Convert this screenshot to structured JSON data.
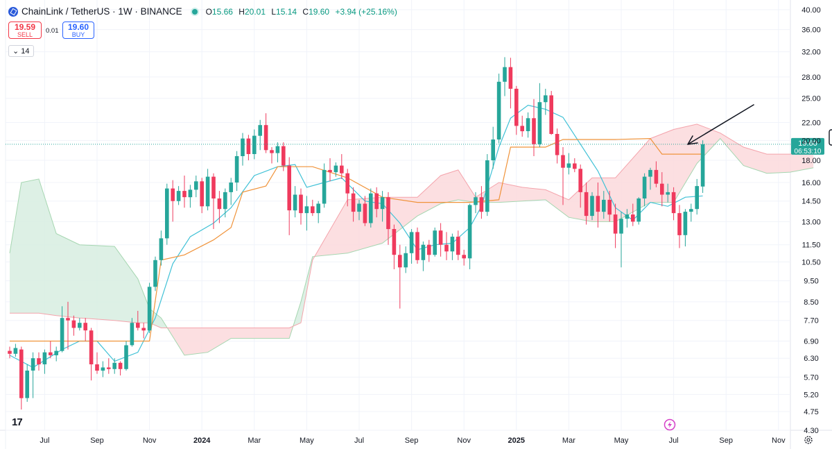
{
  "header": {
    "symbol": "ChainLink / TetherUS · 1W · BINANCE",
    "o_label": "O",
    "o": "15.66",
    "h_label": "H",
    "h": "20.01",
    "l_label": "L",
    "l": "15.14",
    "c_label": "C",
    "c": "19.60",
    "change": "+3.94 (+25.16%)"
  },
  "trade": {
    "sell_price": "19.59",
    "sell_label": "SELL",
    "spread": "0.01",
    "buy_price": "19.60",
    "buy_label": "BUY"
  },
  "indicator": {
    "label": "14",
    "icon": "chevron-down-icon"
  },
  "price_badge": {
    "price": "19.60",
    "countdown": "06:53:10"
  },
  "colors": {
    "up": "#26a69a",
    "down": "#ef3a5d",
    "tenkan": "#3fc1d6",
    "kijun": "#f0933a",
    "cloud_bull": "#d7ede0",
    "cloud_bear": "#fbd9dc"
  },
  "chart_data": {
    "type": "candlestick",
    "title": "ChainLink / TetherUS · 1W · BINANCE",
    "yscale": "log",
    "ylim": [
      4.3,
      40.0
    ],
    "y_ticks": [
      "40.00",
      "36.00",
      "32.00",
      "28.00",
      "25.00",
      "22.00",
      "20.00",
      "18.00",
      "16.00",
      "14.50",
      "13.00",
      "11.50",
      "10.50",
      "9.50",
      "8.50",
      "7.70",
      "6.90",
      "6.30",
      "5.70",
      "5.20",
      "4.75",
      "4.30"
    ],
    "x_ticks": [
      {
        "label": "Jul",
        "idx": 6,
        "bold": false
      },
      {
        "label": "Sep",
        "idx": 15,
        "bold": false
      },
      {
        "label": "Nov",
        "idx": 24,
        "bold": false
      },
      {
        "label": "2024",
        "idx": 33,
        "bold": true
      },
      {
        "label": "Mar",
        "idx": 42,
        "bold": false
      },
      {
        "label": "May",
        "idx": 51,
        "bold": false
      },
      {
        "label": "Jul",
        "idx": 60,
        "bold": false
      },
      {
        "label": "Sep",
        "idx": 69,
        "bold": false
      },
      {
        "label": "Nov",
        "idx": 78,
        "bold": false
      },
      {
        "label": "2025",
        "idx": 87,
        "bold": true
      },
      {
        "label": "Mar",
        "idx": 96,
        "bold": false
      },
      {
        "label": "May",
        "idx": 105,
        "bold": false
      },
      {
        "label": "Jul",
        "idx": 114,
        "bold": false
      },
      {
        "label": "Sep",
        "idx": 123,
        "bold": false
      },
      {
        "label": "Nov",
        "idx": 132,
        "bold": false
      }
    ],
    "candles": [
      [
        6.55,
        6.7,
        6.3,
        6.45
      ],
      [
        6.45,
        6.8,
        6.35,
        6.65
      ],
      [
        6.6,
        6.7,
        4.8,
        5.1
      ],
      [
        5.1,
        6.1,
        5.0,
        5.9
      ],
      [
        5.9,
        6.5,
        5.1,
        6.3
      ],
      [
        6.3,
        6.5,
        5.9,
        6.1
      ],
      [
        6.1,
        6.6,
        5.8,
        6.5
      ],
      [
        6.5,
        6.9,
        6.3,
        6.4
      ],
      [
        6.4,
        6.7,
        6.2,
        6.55
      ],
      [
        6.55,
        8.3,
        6.5,
        7.8
      ],
      [
        7.8,
        8.5,
        6.6,
        7.7
      ],
      [
        7.7,
        7.9,
        7.1,
        7.4
      ],
      [
        7.4,
        7.8,
        7.3,
        7.6
      ],
      [
        7.6,
        7.8,
        6.9,
        7.3
      ],
      [
        7.3,
        7.4,
        5.6,
        6.1
      ],
      [
        6.1,
        6.5,
        5.8,
        5.9
      ],
      [
        5.9,
        6.2,
        5.7,
        6.0
      ],
      [
        6.0,
        6.3,
        5.8,
        5.95
      ],
      [
        5.95,
        6.3,
        5.8,
        6.15
      ],
      [
        6.15,
        6.2,
        5.75,
        5.95
      ],
      [
        5.95,
        6.9,
        5.9,
        6.75
      ],
      [
        6.75,
        7.8,
        6.7,
        7.6
      ],
      [
        7.6,
        8.1,
        7.3,
        7.4
      ],
      [
        7.4,
        7.6,
        7.0,
        7.3
      ],
      [
        7.3,
        9.4,
        7.2,
        9.2
      ],
      [
        9.2,
        10.8,
        9.0,
        10.6
      ],
      [
        10.6,
        12.4,
        10.3,
        11.9
      ],
      [
        11.9,
        15.9,
        11.5,
        15.5
      ],
      [
        15.5,
        16.2,
        13.0,
        14.5
      ],
      [
        14.5,
        15.7,
        14.2,
        15.3
      ],
      [
        15.3,
        16.6,
        14.0,
        14.8
      ],
      [
        14.8,
        15.8,
        14.0,
        15.4
      ],
      [
        15.4,
        16.6,
        14.8,
        16.1
      ],
      [
        16.1,
        16.4,
        13.6,
        14.1
      ],
      [
        14.1,
        17.2,
        13.8,
        16.5
      ],
      [
        16.5,
        16.8,
        12.5,
        14.7
      ],
      [
        14.7,
        15.3,
        12.9,
        13.9
      ],
      [
        13.9,
        15.5,
        13.3,
        15.2
      ],
      [
        15.2,
        16.4,
        14.2,
        16.0
      ],
      [
        16.0,
        18.9,
        15.3,
        18.4
      ],
      [
        18.4,
        20.8,
        17.5,
        20.2
      ],
      [
        20.2,
        20.6,
        18.0,
        18.6
      ],
      [
        18.6,
        21.2,
        18.1,
        20.5
      ],
      [
        20.5,
        22.3,
        19.0,
        21.7
      ],
      [
        21.7,
        23.1,
        18.7,
        19.0
      ],
      [
        19.0,
        19.3,
        17.7,
        18.7
      ],
      [
        18.7,
        19.8,
        17.8,
        19.4
      ],
      [
        19.4,
        19.8,
        17.0,
        17.5
      ],
      [
        17.5,
        18.3,
        12.1,
        13.8
      ],
      [
        13.8,
        15.7,
        13.3,
        15.0
      ],
      [
        15.0,
        15.5,
        12.8,
        13.6
      ],
      [
        13.6,
        14.9,
        12.4,
        14.1
      ],
      [
        14.1,
        14.6,
        13.4,
        13.6
      ],
      [
        13.6,
        14.5,
        12.9,
        14.3
      ],
      [
        14.3,
        17.7,
        14.0,
        17.1
      ],
      [
        17.1,
        18.2,
        16.1,
        16.9
      ],
      [
        16.9,
        17.8,
        16.5,
        17.5
      ],
      [
        17.5,
        18.6,
        16.3,
        16.8
      ],
      [
        16.8,
        17.2,
        14.1,
        15.1
      ],
      [
        15.1,
        15.6,
        13.0,
        13.7
      ],
      [
        13.7,
        14.6,
        13.1,
        14.3
      ],
      [
        14.3,
        14.9,
        12.7,
        12.9
      ],
      [
        12.9,
        15.5,
        12.6,
        15.1
      ],
      [
        15.1,
        15.6,
        13.3,
        13.9
      ],
      [
        13.9,
        15.3,
        13.0,
        14.8
      ],
      [
        14.8,
        15.2,
        11.5,
        12.5
      ],
      [
        12.5,
        12.8,
        10.1,
        10.9
      ],
      [
        10.9,
        11.5,
        8.2,
        10.2
      ],
      [
        10.2,
        11.4,
        9.9,
        11.0
      ],
      [
        11.0,
        12.5,
        10.4,
        12.3
      ],
      [
        12.3,
        12.6,
        10.4,
        10.6
      ],
      [
        10.6,
        11.7,
        10.0,
        11.5
      ],
      [
        11.5,
        11.8,
        10.5,
        10.9
      ],
      [
        10.9,
        12.6,
        10.8,
        12.4
      ],
      [
        12.4,
        12.9,
        10.8,
        11.5
      ],
      [
        11.5,
        12.3,
        10.6,
        11.1
      ],
      [
        11.1,
        12.2,
        10.6,
        12.0
      ],
      [
        12.0,
        12.4,
        10.6,
        10.9
      ],
      [
        10.9,
        11.2,
        10.3,
        10.7
      ],
      [
        10.7,
        14.3,
        10.1,
        14.2
      ],
      [
        14.2,
        15.2,
        13.6,
        14.8
      ],
      [
        14.8,
        15.7,
        13.2,
        13.7
      ],
      [
        13.7,
        18.6,
        13.4,
        18.0
      ],
      [
        18.0,
        21.5,
        17.2,
        20.1
      ],
      [
        20.1,
        28.5,
        19.7,
        27.3
      ],
      [
        27.3,
        31.1,
        25.3,
        29.5
      ],
      [
        29.5,
        31.0,
        23.7,
        26.3
      ],
      [
        26.3,
        26.7,
        20.6,
        21.6
      ],
      [
        21.6,
        22.8,
        20.4,
        21.0
      ],
      [
        21.0,
        23.2,
        20.3,
        22.5
      ],
      [
        22.5,
        24.9,
        18.4,
        19.6
      ],
      [
        19.6,
        27.1,
        19.3,
        24.5
      ],
      [
        24.5,
        26.3,
        22.9,
        25.4
      ],
      [
        25.4,
        26.0,
        20.6,
        20.7
      ],
      [
        20.7,
        21.3,
        17.7,
        18.5
      ],
      [
        18.5,
        19.3,
        14.2,
        17.3
      ],
      [
        17.3,
        18.7,
        16.7,
        17.7
      ],
      [
        17.7,
        18.2,
        16.9,
        17.2
      ],
      [
        17.2,
        17.6,
        14.0,
        15.2
      ],
      [
        15.2,
        16.0,
        12.8,
        13.4
      ],
      [
        13.4,
        15.2,
        13.1,
        14.9
      ],
      [
        14.9,
        16.0,
        12.6,
        13.7
      ],
      [
        13.7,
        15.3,
        13.2,
        14.6
      ],
      [
        14.6,
        15.3,
        13.0,
        13.5
      ],
      [
        13.5,
        14.3,
        11.3,
        12.2
      ],
      [
        12.2,
        13.7,
        10.2,
        13.2
      ],
      [
        13.2,
        13.9,
        12.6,
        13.5
      ],
      [
        13.5,
        14.3,
        12.7,
        13.0
      ],
      [
        13.0,
        14.8,
        12.8,
        14.7
      ],
      [
        14.7,
        16.8,
        14.1,
        16.5
      ],
      [
        16.5,
        17.3,
        15.4,
        17.1
      ],
      [
        17.1,
        17.9,
        15.6,
        15.9
      ],
      [
        15.9,
        16.9,
        14.1,
        15.0
      ],
      [
        15.0,
        15.9,
        14.4,
        15.2
      ],
      [
        15.2,
        15.6,
        13.1,
        13.6
      ],
      [
        13.6,
        14.2,
        11.3,
        12.1
      ],
      [
        12.1,
        13.9,
        11.4,
        13.7
      ],
      [
        13.7,
        14.3,
        13.0,
        13.9
      ],
      [
        13.9,
        16.3,
        13.5,
        15.7
      ],
      [
        15.66,
        20.01,
        15.14,
        19.6
      ]
    ],
    "tenkan": [
      [
        0,
        6.4
      ],
      [
        4,
        6.0
      ],
      [
        9,
        6.6
      ],
      [
        12,
        6.9
      ],
      [
        15,
        6.9
      ],
      [
        18,
        6.2
      ],
      [
        22,
        6.5
      ],
      [
        25,
        7.8
      ],
      [
        28,
        10.4
      ],
      [
        31,
        12.0
      ],
      [
        35,
        12.9
      ],
      [
        38,
        14.0
      ],
      [
        42,
        16.6
      ],
      [
        46,
        17.4
      ],
      [
        49,
        17.6
      ],
      [
        51,
        15.6
      ],
      [
        54,
        16.0
      ],
      [
        57,
        16.4
      ],
      [
        61,
        14.5
      ],
      [
        64,
        14.3
      ],
      [
        67,
        12.9
      ],
      [
        70,
        11.2
      ],
      [
        73,
        11.5
      ],
      [
        76,
        11.6
      ],
      [
        79,
        12.6
      ],
      [
        81,
        14.1
      ],
      [
        84,
        19.3
      ],
      [
        86,
        22.5
      ],
      [
        89,
        24.1
      ],
      [
        92,
        23.6
      ],
      [
        95,
        22.6
      ],
      [
        98,
        19.6
      ],
      [
        101,
        17.0
      ],
      [
        104,
        14.0
      ],
      [
        107,
        13.1
      ],
      [
        110,
        14.4
      ],
      [
        113,
        14.1
      ],
      [
        116,
        14.8
      ],
      [
        119,
        14.9
      ]
    ],
    "kijun": [
      [
        0,
        6.9
      ],
      [
        10,
        6.9
      ],
      [
        24,
        6.9
      ],
      [
        26,
        10.6
      ],
      [
        30,
        10.9
      ],
      [
        35,
        11.8
      ],
      [
        38,
        12.6
      ],
      [
        40,
        15.2
      ],
      [
        44,
        15.7
      ],
      [
        46,
        17.4
      ],
      [
        52,
        17.4
      ],
      [
        58,
        16.4
      ],
      [
        64,
        14.8
      ],
      [
        70,
        14.4
      ],
      [
        79,
        14.4
      ],
      [
        84,
        14.6
      ],
      [
        86,
        19.3
      ],
      [
        92,
        19.3
      ],
      [
        95,
        20.1
      ],
      [
        104,
        20.1
      ],
      [
        110,
        20.2
      ],
      [
        112,
        18.6
      ],
      [
        119,
        18.6
      ]
    ],
    "cloud": [
      [
        0,
        11.0,
        8.0
      ],
      [
        2,
        16.0,
        8.0
      ],
      [
        5,
        16.3,
        8.0
      ],
      [
        8,
        12.2,
        7.9
      ],
      [
        12,
        11.5,
        7.8
      ],
      [
        18,
        11.4,
        7.7
      ],
      [
        22,
        9.6,
        7.6
      ],
      [
        24,
        8.2,
        7.6
      ],
      [
        26,
        7.8,
        7.4
      ],
      [
        30,
        6.4,
        7.4
      ],
      [
        34,
        6.5,
        7.4
      ],
      [
        38,
        7.0,
        7.4
      ],
      [
        44,
        7.0,
        7.4
      ],
      [
        48,
        7.0,
        7.4
      ],
      [
        50,
        8.5,
        7.6
      ],
      [
        52,
        10.8,
        10.6
      ],
      [
        58,
        11.0,
        14.6
      ],
      [
        64,
        11.6,
        14.8
      ],
      [
        70,
        13.4,
        14.8
      ],
      [
        74,
        14.3,
        16.6
      ],
      [
        77,
        14.6,
        17.1
      ],
      [
        80,
        14.4,
        14.8
      ],
      [
        84,
        14.4,
        16.0
      ],
      [
        88,
        14.5,
        15.6
      ],
      [
        92,
        14.6,
        15.4
      ],
      [
        96,
        13.3,
        14.6
      ],
      [
        100,
        13.0,
        16.4
      ],
      [
        104,
        13.0,
        16.4
      ],
      [
        110,
        14.4,
        20.2
      ],
      [
        114,
        14.4,
        21.2
      ],
      [
        118,
        17.7,
        21.8
      ],
      [
        122,
        20.2,
        20.8
      ],
      [
        126,
        17.5,
        19.3
      ],
      [
        130,
        16.8,
        18.6
      ],
      [
        134,
        16.9,
        18.6
      ],
      [
        138,
        17.3,
        19.0
      ]
    ]
  },
  "footer": {
    "tv_logo": "17",
    "settings_icon": "gear-icon",
    "flash_icon": "lightning-icon"
  }
}
